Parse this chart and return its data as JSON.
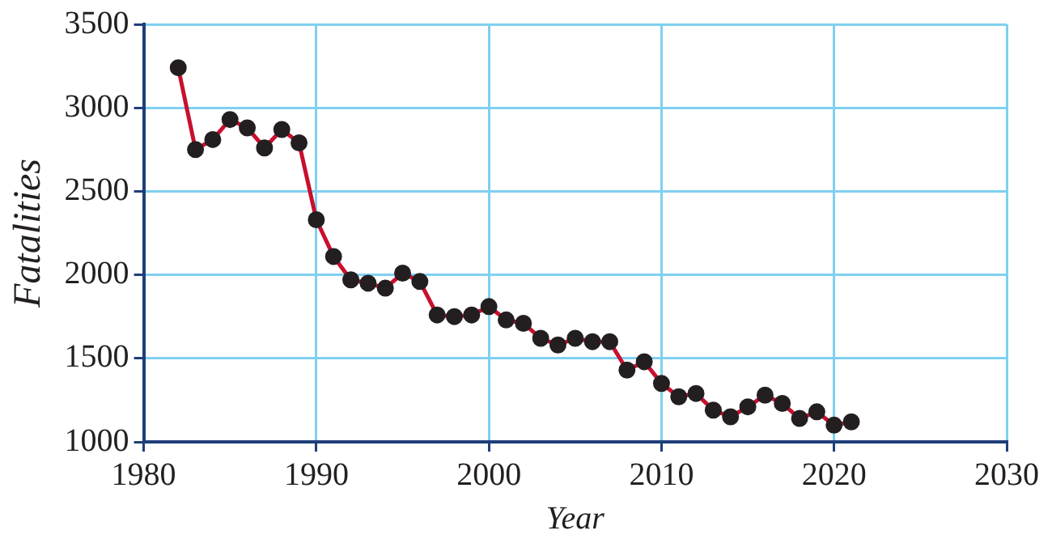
{
  "chart_data": {
    "type": "line",
    "xlabel": "Year",
    "ylabel": "Fatalities",
    "x": [
      1982,
      1983,
      1984,
      1985,
      1986,
      1987,
      1988,
      1989,
      1990,
      1991,
      1992,
      1993,
      1994,
      1995,
      1996,
      1997,
      1998,
      1999,
      2000,
      2001,
      2002,
      2003,
      2004,
      2005,
      2006,
      2007,
      2008,
      2009,
      2010,
      2011,
      2012,
      2013,
      2014,
      2015,
      2016,
      2017,
      2018,
      2019,
      2020,
      2021
    ],
    "series": [
      {
        "color": "#c8102e",
        "values": [
          3240,
          2750,
          2810,
          2930,
          2880,
          2760,
          2870,
          2790,
          2330,
          2110,
          1970,
          1950,
          1920,
          2010,
          1960,
          1760,
          1750,
          1760,
          1810,
          1730,
          1710,
          1620,
          1580,
          1620,
          1600,
          1600,
          1430,
          1480,
          1350,
          1270,
          1290,
          1190,
          1150,
          1210,
          1280,
          1230,
          1140,
          1180,
          1100,
          1120
        ]
      }
    ],
    "xlim": [
      1980,
      2030
    ],
    "xticks": [
      1980,
      1990,
      2000,
      2010,
      2020,
      2030
    ],
    "ylim": [
      1000,
      3500
    ],
    "yticks": [
      1000,
      1500,
      2000,
      2500,
      3000,
      3500
    ],
    "grid": true,
    "legend": false,
    "marker": "circle",
    "line_style": "solid"
  }
}
